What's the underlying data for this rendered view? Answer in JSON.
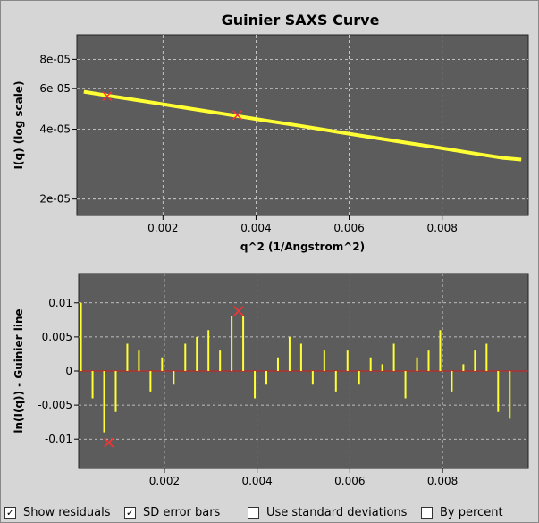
{
  "chart_data": [
    {
      "type": "line",
      "title": "Guinier SAXS Curve",
      "xlabel": "q^2 (1/Angstrom^2)",
      "ylabel": "I(q) (log scale)",
      "log_y": true,
      "grid": true,
      "color": "#ffff33",
      "x": [
        0.0003,
        0.0008,
        0.0013,
        0.0018,
        0.0023,
        0.0028,
        0.0033,
        0.0038,
        0.0043,
        0.0048,
        0.0053,
        0.0058,
        0.0063,
        0.0068,
        0.0073,
        0.0078,
        0.0083,
        0.0088,
        0.0093,
        0.0097
      ],
      "values": [
        5.8e-05,
        5.59e-05,
        5.39e-05,
        5.2e-05,
        5.01e-05,
        4.83e-05,
        4.66e-05,
        4.49e-05,
        4.33e-05,
        4.18e-05,
        4.03e-05,
        3.88e-05,
        3.74e-05,
        3.61e-05,
        3.48e-05,
        3.36e-05,
        3.24e-05,
        3.12e-05,
        3.01e-05,
        2.96e-05
      ],
      "markers": {
        "x": [
          0.0008,
          0.0036
        ],
        "values": [
          5.55e-05,
          4.6e-05
        ],
        "color": "#ff3030"
      },
      "xlim": [
        0.00015,
        0.00985
      ],
      "ylim": [
        1.7e-05,
        0.000102
      ],
      "xticks": [
        0.002,
        0.004,
        0.006,
        0.008
      ],
      "yticks": [
        {
          "value": 2e-05,
          "label": "2e-05"
        },
        {
          "value": 4e-05,
          "label": "4e-05"
        },
        {
          "value": 6e-05,
          "label": "6e-05"
        },
        {
          "value": 8e-05,
          "label": "8e-05"
        }
      ]
    },
    {
      "type": "residual",
      "ylabel": "ln(I(q)) - Guinier line",
      "grid": true,
      "color": "#ffff33",
      "x": [
        0.0002,
        0.00045,
        0.0007,
        0.00095,
        0.0012,
        0.00145,
        0.0017,
        0.00195,
        0.0022,
        0.00245,
        0.0027,
        0.00295,
        0.0032,
        0.00345,
        0.0037,
        0.00395,
        0.0042,
        0.00445,
        0.0047,
        0.00495,
        0.0052,
        0.00545,
        0.0057,
        0.00595,
        0.0062,
        0.00645,
        0.0067,
        0.00695,
        0.0072,
        0.00745,
        0.0077,
        0.00795,
        0.0082,
        0.00845,
        0.0087,
        0.00895,
        0.0092,
        0.00945
      ],
      "values": [
        0.01,
        -0.004,
        -0.009,
        -0.006,
        0.004,
        0.003,
        -0.003,
        0.002,
        -0.002,
        0.004,
        0.005,
        0.006,
        0.003,
        0.008,
        0.008,
        -0.004,
        -0.002,
        0.002,
        0.005,
        0.004,
        -0.002,
        0.003,
        -0.003,
        0.003,
        -0.002,
        0.002,
        0.001,
        0.004,
        -0.004,
        0.002,
        0.003,
        0.006,
        -0.003,
        0.001,
        0.003,
        0.004,
        -0.006,
        -0.007
      ],
      "markers": {
        "x": [
          0.0008,
          0.0036
        ],
        "values": [
          -0.0105,
          0.0088
        ],
        "color": "#ff3030"
      },
      "xlim": [
        0.00015,
        0.00985
      ],
      "ylim": [
        -0.0143,
        0.0143
      ],
      "xticks": [
        0.002,
        0.004,
        0.006,
        0.008
      ],
      "yticks": [
        -0.01,
        -0.005,
        0,
        0.005,
        0.01
      ]
    }
  ],
  "controls": [
    {
      "label": "Show residuals",
      "checked": true
    },
    {
      "label": "SD error bars",
      "checked": true
    },
    {
      "label": "Use standard deviations",
      "checked": false
    },
    {
      "label": "By percent",
      "checked": false
    }
  ]
}
